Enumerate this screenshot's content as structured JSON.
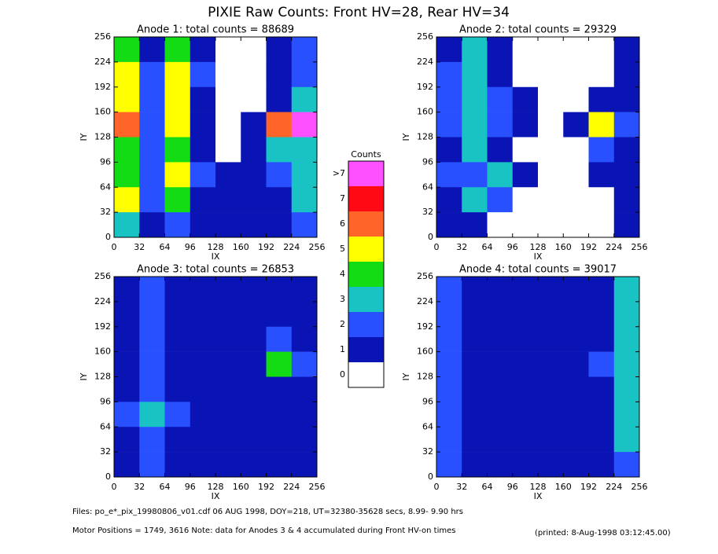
{
  "title": "PIXIE Raw Counts:  Front HV=28, Rear HV=34",
  "chart_data": [
    {
      "type": "heatmap",
      "title": "Anode 1: total counts = 88689",
      "xlabel": "IX",
      "ylabel": "IY",
      "xlim": [
        0,
        256
      ],
      "ylim": [
        0,
        256
      ],
      "xticks": [
        0,
        32,
        64,
        96,
        128,
        160,
        192,
        224,
        256
      ],
      "yticks": [
        0,
        32,
        64,
        96,
        128,
        160,
        192,
        224,
        256
      ],
      "values": [
        [
          4,
          1,
          4,
          1,
          0,
          0,
          1,
          2
        ],
        [
          5,
          2,
          5,
          2,
          0,
          0,
          1,
          2
        ],
        [
          5,
          2,
          5,
          1,
          0,
          0,
          1,
          3
        ],
        [
          6,
          2,
          5,
          1,
          0,
          1,
          6,
          8
        ],
        [
          4,
          2,
          4,
          1,
          0,
          1,
          3,
          3
        ],
        [
          4,
          2,
          5,
          2,
          1,
          1,
          2,
          3
        ],
        [
          5,
          2,
          4,
          1,
          1,
          1,
          1,
          3
        ],
        [
          3,
          1,
          2,
          1,
          1,
          1,
          1,
          2
        ]
      ]
    },
    {
      "type": "heatmap",
      "title": "Anode 2: total counts = 29329",
      "xlabel": "IX",
      "ylabel": "IY",
      "xlim": [
        0,
        256
      ],
      "ylim": [
        0,
        256
      ],
      "xticks": [
        0,
        32,
        64,
        96,
        128,
        160,
        192,
        224,
        256
      ],
      "yticks": [
        0,
        32,
        64,
        96,
        128,
        160,
        192,
        224,
        256
      ],
      "values": [
        [
          1,
          3,
          1,
          0,
          0,
          0,
          0,
          1
        ],
        [
          2,
          3,
          1,
          0,
          0,
          0,
          0,
          1
        ],
        [
          2,
          3,
          2,
          1,
          0,
          0,
          1,
          1
        ],
        [
          2,
          3,
          2,
          1,
          0,
          1,
          5,
          2
        ],
        [
          1,
          3,
          1,
          0,
          0,
          0,
          2,
          1
        ],
        [
          2,
          2,
          3,
          1,
          0,
          0,
          1,
          1
        ],
        [
          1,
          3,
          2,
          0,
          0,
          0,
          0,
          1
        ],
        [
          1,
          1,
          0,
          0,
          0,
          0,
          0,
          1
        ]
      ]
    },
    {
      "type": "heatmap",
      "title": "Anode 3: total counts = 26853",
      "xlabel": "IX",
      "ylabel": "IY",
      "xlim": [
        0,
        256
      ],
      "ylim": [
        0,
        256
      ],
      "xticks": [
        0,
        32,
        64,
        96,
        128,
        160,
        192,
        224,
        256
      ],
      "yticks": [
        0,
        32,
        64,
        96,
        128,
        160,
        192,
        224,
        256
      ],
      "values": [
        [
          1,
          2,
          1,
          1,
          1,
          1,
          1,
          1
        ],
        [
          1,
          2,
          1,
          1,
          1,
          1,
          1,
          1
        ],
        [
          1,
          2,
          1,
          1,
          1,
          1,
          2,
          1
        ],
        [
          1,
          2,
          1,
          1,
          1,
          1,
          4,
          2
        ],
        [
          1,
          2,
          1,
          1,
          1,
          1,
          1,
          1
        ],
        [
          2,
          3,
          2,
          1,
          1,
          1,
          1,
          1
        ],
        [
          1,
          2,
          1,
          1,
          1,
          1,
          1,
          1
        ],
        [
          1,
          2,
          1,
          1,
          1,
          1,
          1,
          1
        ]
      ]
    },
    {
      "type": "heatmap",
      "title": "Anode 4: total counts = 39017",
      "xlabel": "IX",
      "ylabel": "IY",
      "xlim": [
        0,
        256
      ],
      "ylim": [
        0,
        256
      ],
      "xticks": [
        0,
        32,
        64,
        96,
        128,
        160,
        192,
        224,
        256
      ],
      "yticks": [
        0,
        32,
        64,
        96,
        128,
        160,
        192,
        224,
        256
      ],
      "values": [
        [
          2,
          1,
          1,
          1,
          1,
          1,
          1,
          3
        ],
        [
          2,
          1,
          1,
          1,
          1,
          1,
          1,
          3
        ],
        [
          2,
          1,
          1,
          1,
          1,
          1,
          1,
          3
        ],
        [
          2,
          1,
          1,
          1,
          1,
          1,
          2,
          3
        ],
        [
          2,
          1,
          1,
          1,
          1,
          1,
          1,
          3
        ],
        [
          2,
          1,
          1,
          1,
          1,
          1,
          1,
          3
        ],
        [
          2,
          1,
          1,
          1,
          1,
          1,
          1,
          3
        ],
        [
          2,
          1,
          1,
          1,
          1,
          1,
          1,
          2
        ]
      ]
    }
  ],
  "colorbar": {
    "title": "Counts",
    "labels": [
      "0",
      "1",
      "2",
      "3",
      "4",
      "5",
      "6",
      "7",
      ">7"
    ],
    "colors": [
      "#ffffff",
      "#0a14b4",
      "#2850ff",
      "#19c3c3",
      "#14dc14",
      "#ffff00",
      "#ff6428",
      "#ff0a14",
      "#ff50ff"
    ]
  },
  "footer": [
    "Files: po_e*_pix_19980806_v01.cdf    06 AUG 1998, DOY=218, UT=32380-35628 secs,  8.99- 9.90 hrs",
    "Motor Positions = 1749, 3616    Note: data for Anodes 3 & 4 accumulated during Front HV-on times",
    "(printed:  8-Aug-1998 03:12:45.00)"
  ]
}
